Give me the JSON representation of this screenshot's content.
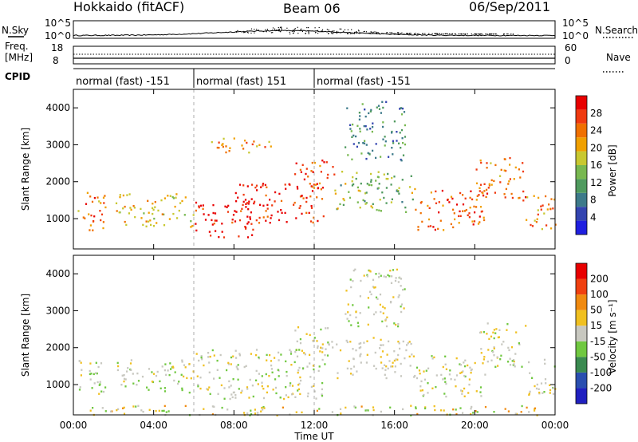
{
  "header": {
    "station": "Hokkaido (fitACF)",
    "beam": "Beam 06",
    "date": "06/Sep/2011"
  },
  "panels": {
    "nsky_label": "N.Sky",
    "nsearch_label": "N.Search",
    "freq_label_line1": "Freq.",
    "freq_label_line2": "[MHz]",
    "nave_label": "Nave",
    "cpid_label": "CPID",
    "left_ticks_top": [
      "10^5",
      "10^0"
    ],
    "right_ticks_top": [
      "10^5",
      "10^0"
    ],
    "left_ticks_freq": [
      "18",
      "8"
    ],
    "right_ticks_nave": [
      "60",
      "0"
    ]
  },
  "cpid_segments": [
    {
      "label": "normal (fast) -151",
      "start_hr": 0,
      "end_hr": 6
    },
    {
      "label": "normal (fast) 151",
      "start_hr": 6,
      "end_hr": 12
    },
    {
      "label": "normal (fast) -151",
      "start_hr": 12,
      "end_hr": 24
    }
  ],
  "chart_data": [
    {
      "type": "heatmap",
      "name": "power",
      "ylabel": "Slant Range [km]",
      "ylim": [
        180,
        4500
      ],
      "yticks": [
        "1000",
        "2000",
        "3000",
        "4000"
      ],
      "xlim": [
        0,
        24
      ],
      "colorbar": {
        "label": "Power [dB]",
        "ticks": [
          "4",
          "8",
          "12",
          "16",
          "20",
          "24",
          "28"
        ],
        "colors": [
          "#1f1fe0",
          "#3344b0",
          "#3d7a8a",
          "#4f9a5e",
          "#78b850",
          "#c8c830",
          "#f0a000",
          "#f07000",
          "#f03a10",
          "#e80000"
        ]
      },
      "regions": [
        {
          "t0": 0.2,
          "t1": 1.6,
          "r0": 700,
          "r1": 1800,
          "level": 0.75
        },
        {
          "t0": 2.1,
          "t1": 6.0,
          "r0": 800,
          "r1": 1700,
          "level": 0.6
        },
        {
          "t0": 6.0,
          "t1": 9.0,
          "r0": 500,
          "r1": 1500,
          "level": 0.95
        },
        {
          "t0": 8.0,
          "t1": 12.5,
          "r0": 900,
          "r1": 2000,
          "level": 0.9
        },
        {
          "t0": 11.0,
          "t1": 13.0,
          "r0": 1800,
          "r1": 2600,
          "level": 0.85
        },
        {
          "t0": 13.0,
          "t1": 17.0,
          "r0": 1200,
          "r1": 2300,
          "level": 0.45
        },
        {
          "t0": 17.0,
          "t1": 20.5,
          "r0": 700,
          "r1": 1800,
          "level": 0.8
        },
        {
          "t0": 20.0,
          "t1": 22.5,
          "r0": 1500,
          "r1": 2700,
          "level": 0.75
        },
        {
          "t0": 22.5,
          "t1": 24.0,
          "r0": 700,
          "r1": 1700,
          "level": 0.7
        },
        {
          "t0": 13.5,
          "t1": 16.5,
          "r0": 2600,
          "r1": 4200,
          "level": 0.3
        },
        {
          "t0": 6.5,
          "t1": 10.0,
          "r0": 2800,
          "r1": 3200,
          "level": 0.7
        }
      ]
    },
    {
      "type": "heatmap",
      "name": "velocity",
      "ylabel": "Slant Range [km]",
      "xlabel": "Time UT",
      "ylim": [
        180,
        4500
      ],
      "yticks": [
        "1000",
        "2000",
        "3000",
        "4000"
      ],
      "xlim": [
        0,
        24
      ],
      "xticks": [
        "00:00",
        "04:00",
        "08:00",
        "12:00",
        "16:00",
        "20:00",
        "00:00"
      ],
      "colorbar": {
        "label": "Velocity [m s⁻¹]",
        "ticks": [
          "200",
          "100",
          "50",
          "15",
          "-15",
          "-50",
          "-100",
          "-200"
        ],
        "colors": [
          "#2020c0",
          "#2a4fb0",
          "#3a8a50",
          "#70c840",
          "#c8c8c0",
          "#f0c020",
          "#f08a10",
          "#f04010",
          "#e80000"
        ]
      },
      "regions": [
        {
          "t0": 0.2,
          "t1": 1.6,
          "r0": 700,
          "r1": 1800,
          "level": 0.5
        },
        {
          "t0": 2.1,
          "t1": 6.0,
          "r0": 800,
          "r1": 1700,
          "level": 0.5
        },
        {
          "t0": 6.0,
          "t1": 12.5,
          "r0": 600,
          "r1": 2000,
          "level": 0.5
        },
        {
          "t0": 11.0,
          "t1": 13.0,
          "r0": 1800,
          "r1": 2600,
          "level": 0.5
        },
        {
          "t0": 13.0,
          "t1": 17.0,
          "r0": 1200,
          "r1": 2300,
          "level": 0.4
        },
        {
          "t0": 17.0,
          "t1": 20.5,
          "r0": 700,
          "r1": 1800,
          "level": 0.5
        },
        {
          "t0": 20.0,
          "t1": 22.5,
          "r0": 1500,
          "r1": 2700,
          "level": 0.5
        },
        {
          "t0": 22.5,
          "t1": 24.0,
          "r0": 700,
          "r1": 1700,
          "level": 0.5
        },
        {
          "t0": 13.5,
          "t1": 16.5,
          "r0": 2600,
          "r1": 4200,
          "level": 0.5
        },
        {
          "t0": 0.5,
          "t1": 23.5,
          "r0": 180,
          "r1": 450,
          "level": 0.6
        }
      ]
    }
  ]
}
